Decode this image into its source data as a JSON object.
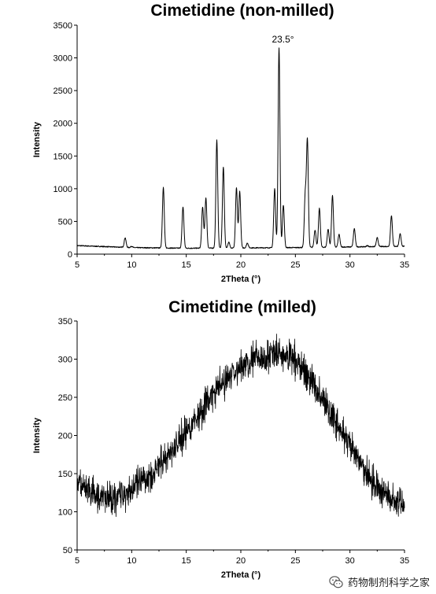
{
  "colors": {
    "line": "#000000",
    "axis": "#000000",
    "background": "#ffffff"
  },
  "watermark": {
    "text": "药物制剂科学之家",
    "icon": "wechat-icon"
  },
  "chart_data": [
    {
      "type": "line",
      "title": "Cimetidine (non-milled)",
      "xlabel": "2Theta (°)",
      "ylabel": "Intensity",
      "xlim": [
        5,
        35
      ],
      "ylim": [
        0,
        3500
      ],
      "xticks": [
        5,
        10,
        15,
        20,
        25,
        30,
        35
      ],
      "yticks": [
        0,
        500,
        1000,
        1500,
        2000,
        2500,
        3000,
        3500
      ],
      "grid": false,
      "baseline": [
        [
          5,
          130
        ],
        [
          10,
          100
        ],
        [
          15,
          90
        ],
        [
          20,
          95
        ],
        [
          25,
          100
        ],
        [
          30,
          110
        ],
        [
          35,
          120
        ]
      ],
      "peaks": [
        {
          "x": 9.4,
          "y": 250
        },
        {
          "x": 10.0,
          "y": 120
        },
        {
          "x": 12.9,
          "y": 1020
        },
        {
          "x": 14.7,
          "y": 720
        },
        {
          "x": 16.5,
          "y": 720
        },
        {
          "x": 16.8,
          "y": 860
        },
        {
          "x": 17.8,
          "y": 1740
        },
        {
          "x": 18.4,
          "y": 1330
        },
        {
          "x": 18.9,
          "y": 180
        },
        {
          "x": 19.6,
          "y": 1010
        },
        {
          "x": 19.9,
          "y": 960
        },
        {
          "x": 20.6,
          "y": 170
        },
        {
          "x": 23.1,
          "y": 1000
        },
        {
          "x": 23.5,
          "y": 3150
        },
        {
          "x": 23.9,
          "y": 750
        },
        {
          "x": 25.9,
          "y": 880
        },
        {
          "x": 26.1,
          "y": 1730
        },
        {
          "x": 26.8,
          "y": 370
        },
        {
          "x": 27.2,
          "y": 700
        },
        {
          "x": 28.0,
          "y": 380
        },
        {
          "x": 28.4,
          "y": 900
        },
        {
          "x": 29.0,
          "y": 300
        },
        {
          "x": 30.4,
          "y": 390
        },
        {
          "x": 31.6,
          "y": 130
        },
        {
          "x": 32.5,
          "y": 250
        },
        {
          "x": 33.8,
          "y": 590
        },
        {
          "x": 34.6,
          "y": 310
        }
      ],
      "annotations": [
        {
          "text": "23.5°",
          "x": 23.5,
          "y": 3150
        }
      ]
    },
    {
      "type": "line",
      "title": "Cimetidine (milled)",
      "xlabel": "2Theta (°)",
      "ylabel": "Intensity",
      "xlim": [
        5,
        35
      ],
      "ylim": [
        50,
        350
      ],
      "xticks": [
        5,
        10,
        15,
        20,
        25,
        30,
        35
      ],
      "yticks": [
        50,
        100,
        150,
        200,
        250,
        300,
        350
      ],
      "grid": false,
      "envelope": [
        [
          5,
          140
        ],
        [
          6,
          125
        ],
        [
          7,
          118
        ],
        [
          8,
          118
        ],
        [
          9,
          122
        ],
        [
          10,
          130
        ],
        [
          11,
          140
        ],
        [
          12,
          152
        ],
        [
          13,
          168
        ],
        [
          14,
          186
        ],
        [
          15,
          205
        ],
        [
          16,
          225
        ],
        [
          17,
          245
        ],
        [
          18,
          262
        ],
        [
          19,
          278
        ],
        [
          20,
          290
        ],
        [
          21,
          298
        ],
        [
          22,
          303
        ],
        [
          23,
          306
        ],
        [
          24,
          305
        ],
        [
          25,
          298
        ],
        [
          26,
          282
        ],
        [
          27,
          260
        ],
        [
          28,
          235
        ],
        [
          29,
          210
        ],
        [
          30,
          185
        ],
        [
          31,
          162
        ],
        [
          32,
          142
        ],
        [
          33,
          126
        ],
        [
          34,
          115
        ],
        [
          35,
          108
        ]
      ],
      "noise_amplitude": 18
    }
  ]
}
